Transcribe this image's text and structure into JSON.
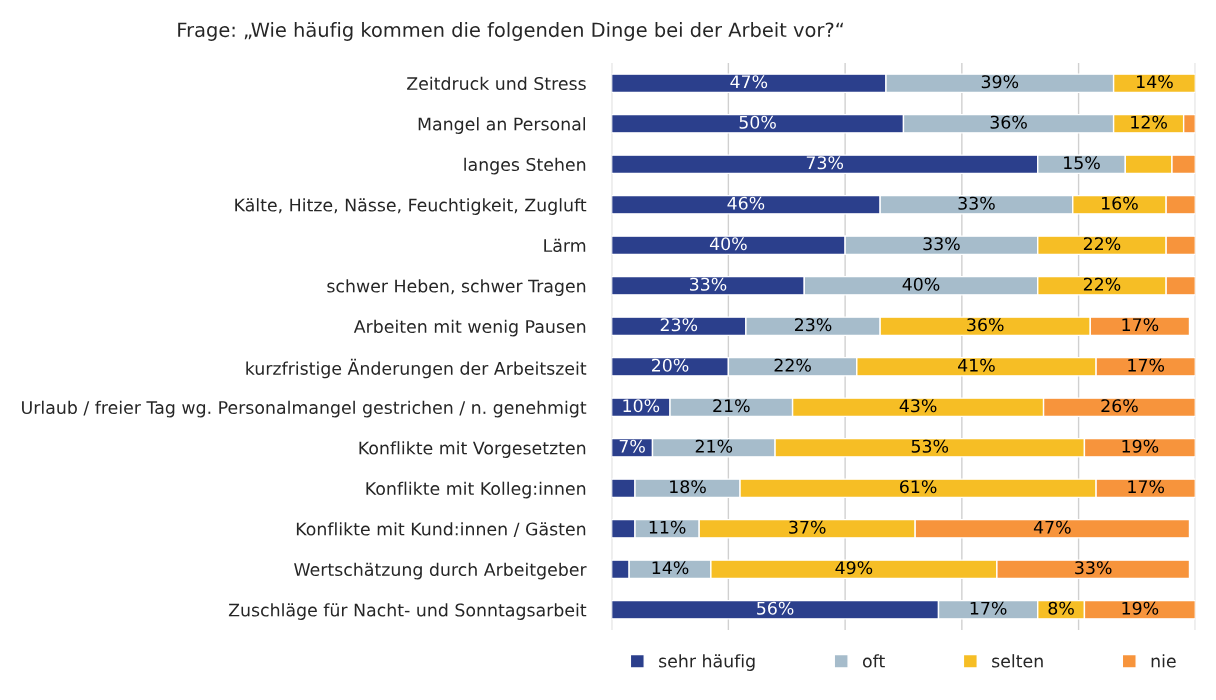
{
  "chart_data": {
    "type": "bar",
    "orientation": "horizontal",
    "stacked": true,
    "title": "Frage: „Wie häufig kommen die folgenden Dinge bei der Arbeit vor?“",
    "categories": [
      "Zeitdruck und Stress",
      "Mangel an Personal",
      "langes Stehen",
      "Kälte, Hitze, Nässe, Feuchtigkeit, Zugluft",
      "Lärm",
      "schwer Heben, schwer Tragen",
      "Arbeiten mit wenig Pausen",
      "kurzfristige Änderungen der Arbeitszeit",
      "Urlaub / freier Tag wg. Personalmangel gestrichen / n. genehmigt",
      "Konflikte mit Vorgesetzten",
      "Konflikte mit Kolleg:innen",
      "Konflikte mit Kund:innen / Gästen",
      "Wertschätzung durch Arbeitgeber",
      "Zuschläge für Nacht- und Sonntagsarbeit"
    ],
    "series": [
      {
        "name": "sehr häufig",
        "color": "#2b3f8c",
        "values": [
          47,
          50,
          73,
          46,
          40,
          33,
          23,
          20,
          10,
          7,
          4,
          4,
          3,
          56
        ],
        "value_labels": [
          "47%",
          "50%",
          "73%",
          "46%",
          "40%",
          "33%",
          "23%",
          "20%",
          "10%",
          "7%",
          null,
          null,
          null,
          "56%"
        ]
      },
      {
        "name": "oft",
        "color": "#a6bccb",
        "values": [
          39,
          36,
          15,
          33,
          33,
          40,
          23,
          22,
          21,
          21,
          18,
          11,
          14,
          17
        ],
        "value_labels": [
          "39%",
          "36%",
          "15%",
          "33%",
          "33%",
          "40%",
          "23%",
          "22%",
          "21%",
          "21%",
          "18%",
          "11%",
          "14%",
          "17%"
        ]
      },
      {
        "name": "selten",
        "color": "#f6be25",
        "values": [
          14,
          12,
          8,
          16,
          22,
          22,
          36,
          41,
          43,
          53,
          61,
          37,
          49,
          8
        ],
        "value_labels": [
          "14%",
          "12%",
          null,
          "16%",
          "22%",
          "22%",
          "36%",
          "41%",
          "43%",
          "53%",
          "61%",
          "37%",
          "49%",
          "8%"
        ]
      },
      {
        "name": "nie",
        "color": "#f7943c",
        "values": [
          null,
          2,
          4,
          5,
          5,
          5,
          17,
          17,
          26,
          19,
          17,
          47,
          33,
          19
        ],
        "value_labels": [
          null,
          null,
          null,
          null,
          null,
          null,
          "17%",
          "17%",
          "26%",
          "19%",
          "17%",
          "47%",
          "33%",
          "19%"
        ]
      }
    ],
    "xlim": [
      0,
      100
    ],
    "xticks": [
      {
        "value": 0,
        "label": null
      },
      {
        "value": 20,
        "label": null
      },
      {
        "value": 40,
        "label": null
      },
      {
        "value": 60,
        "label": null
      },
      {
        "value": 80,
        "label": null
      },
      {
        "value": 100,
        "label": null
      }
    ],
    "tick_labels": "y",
    "grid": "x",
    "legend": "bottom"
  }
}
